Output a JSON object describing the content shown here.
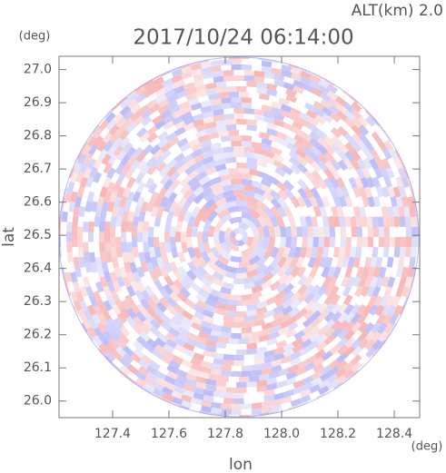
{
  "chart_data": {
    "type": "radar-image",
    "title": "2017/10/24 06:14:00",
    "subtitle": "ALT(km) 2.0",
    "x_label": "lon",
    "y_label": "lat",
    "x_unit": "(deg)",
    "y_unit": "(deg)",
    "xlim": [
      127.21,
      128.49
    ],
    "ylim": [
      25.95,
      27.04
    ],
    "xticks": [
      127.4,
      127.6,
      127.8,
      {
        "value": 128,
        "label": "128.0"
      },
      128.2,
      128.4
    ],
    "yticks": [
      {
        "value": 26,
        "label": "26.0"
      },
      26.1,
      26.2,
      26.3,
      26.4,
      26.5,
      26.6,
      26.7,
      26.8,
      26.9,
      {
        "value": 27,
        "label": "27.0"
      }
    ]
  }
}
